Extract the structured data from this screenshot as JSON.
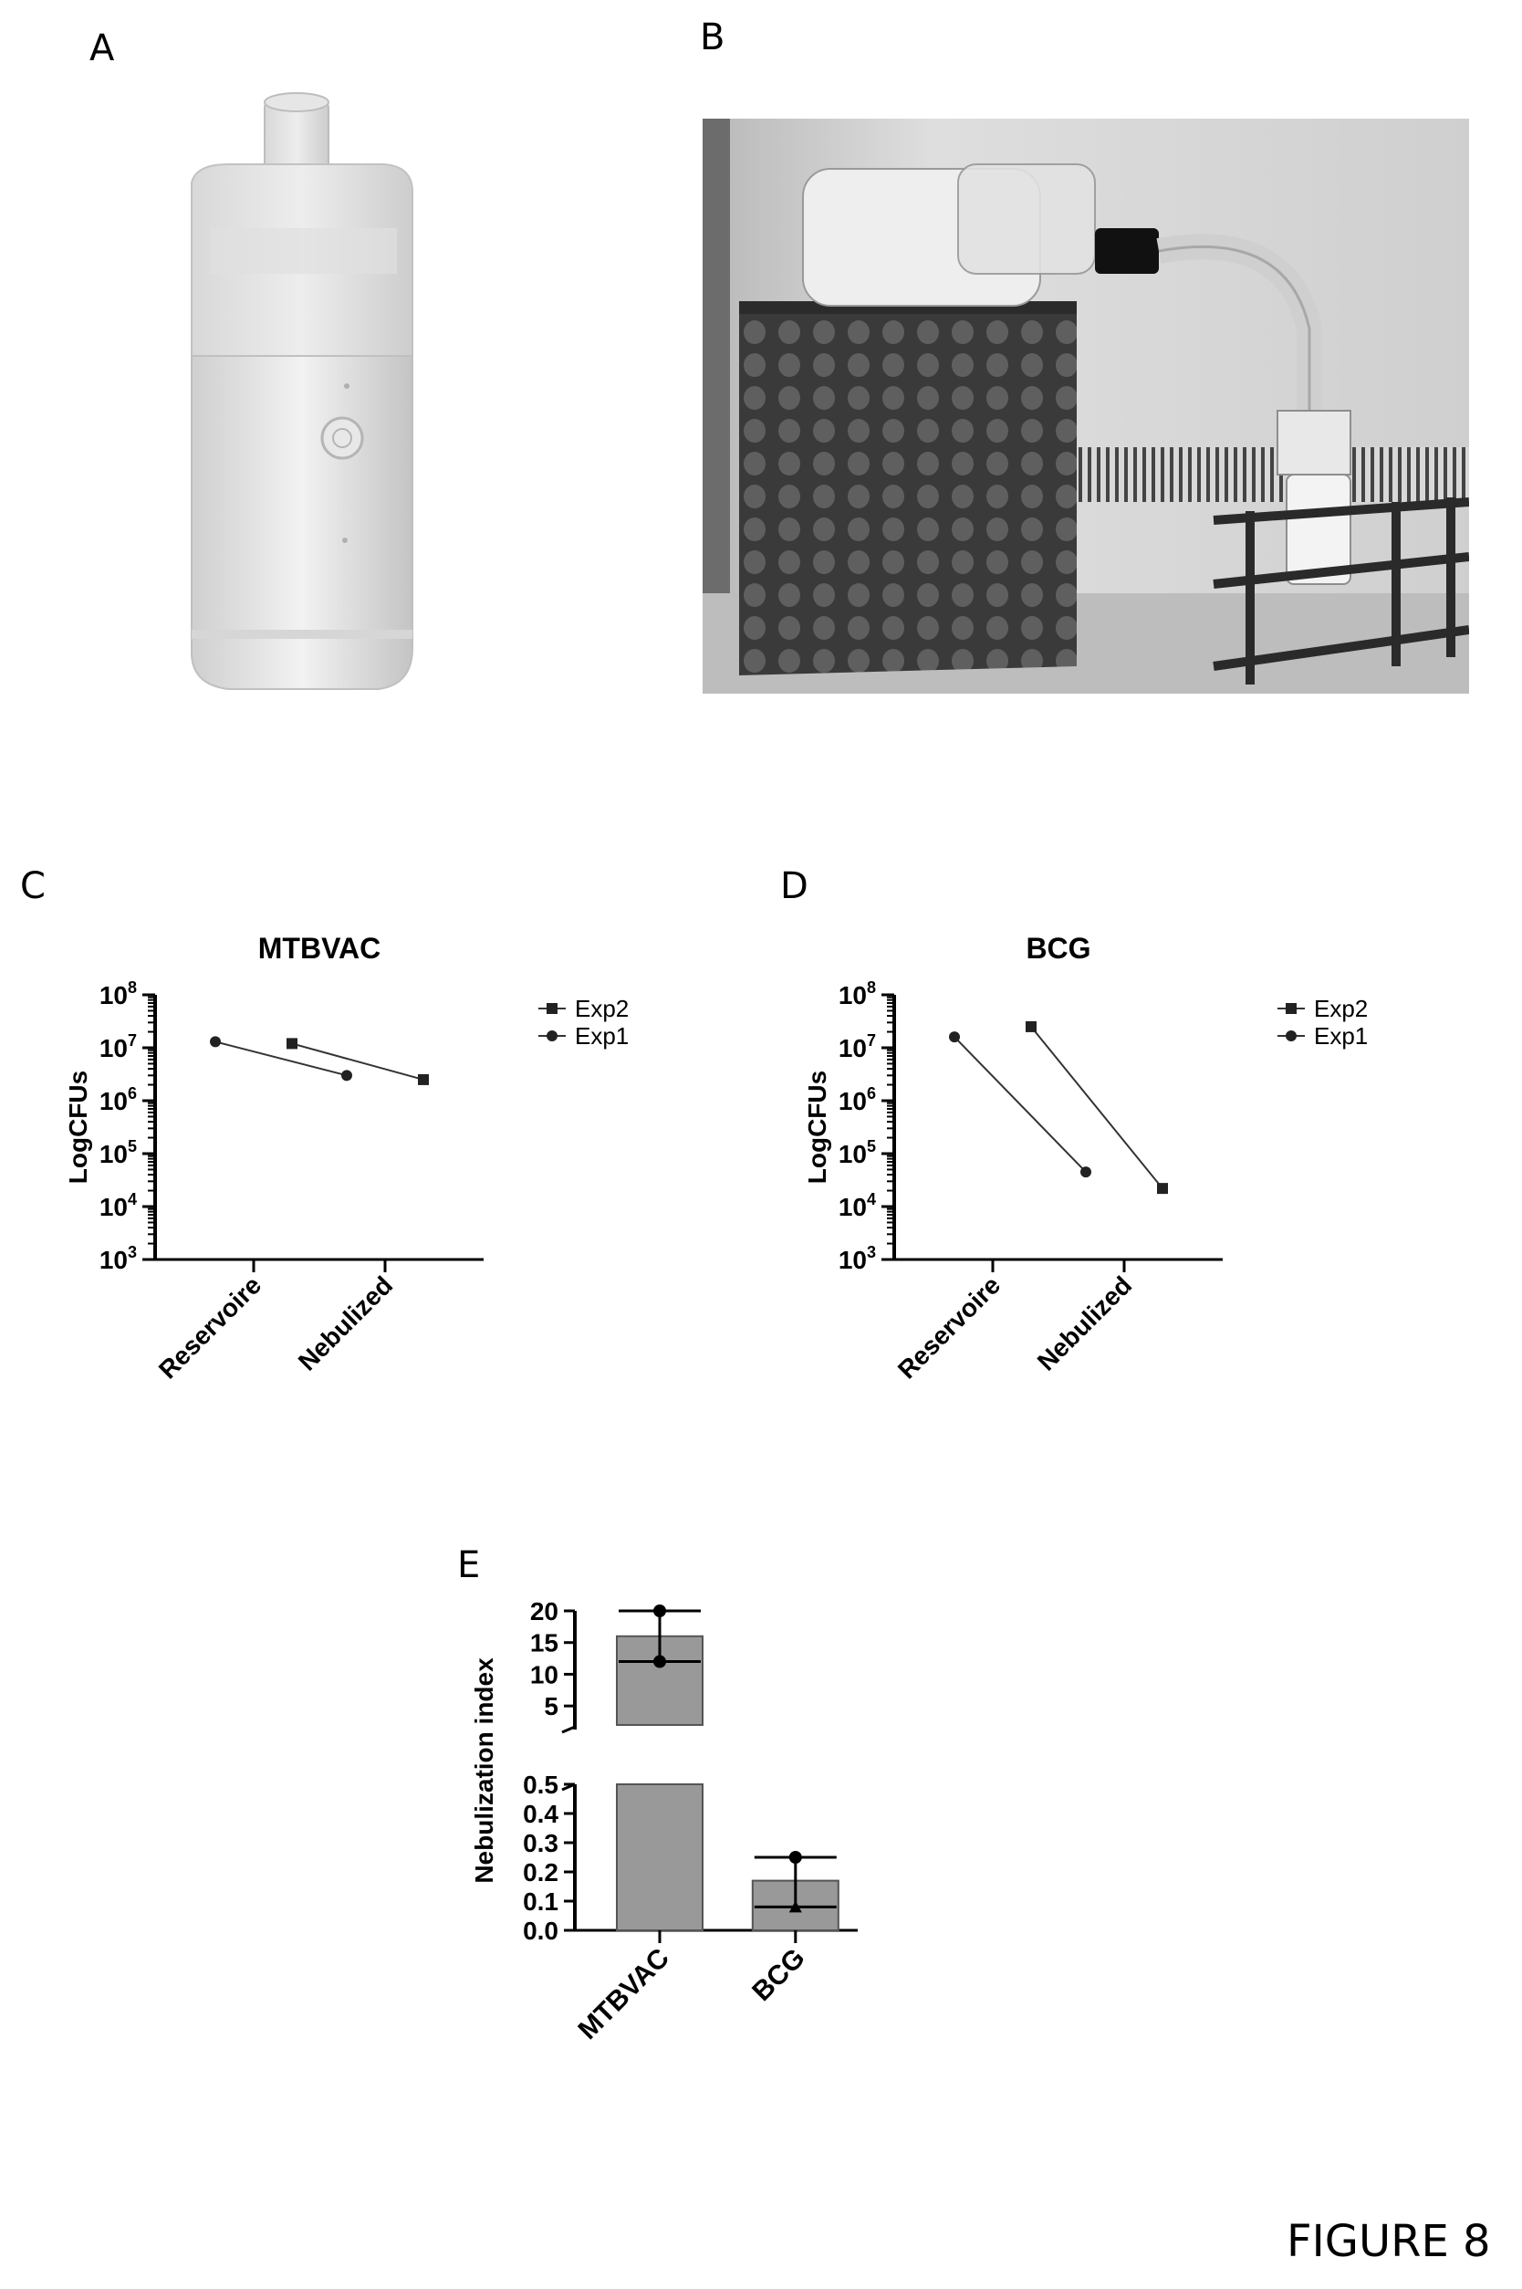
{
  "figure_label": "FIGURE 8",
  "panels": {
    "A": {
      "label": "A"
    },
    "B": {
      "label": "B"
    },
    "C": {
      "label": "C"
    },
    "D": {
      "label": "D"
    },
    "E": {
      "label": "E"
    }
  },
  "chart_data": [
    {
      "id": "C",
      "type": "line",
      "title": "MTBVAC",
      "ylabel": "LogCFUs",
      "xlabel": "",
      "y_scale": "log",
      "ylim": [
        1000,
        100000000
      ],
      "y_ticks": [
        {
          "base": "10",
          "exp": "3"
        },
        {
          "base": "10",
          "exp": "4"
        },
        {
          "base": "10",
          "exp": "5"
        },
        {
          "base": "10",
          "exp": "6"
        },
        {
          "base": "10",
          "exp": "7"
        },
        {
          "base": "10",
          "exp": "8"
        }
      ],
      "categories": [
        "Reservoire",
        "Nebulized"
      ],
      "legend_position": "top-right",
      "series": [
        {
          "name": "Exp2",
          "marker": "square",
          "values": [
            12000000,
            2500000
          ]
        },
        {
          "name": "Exp1",
          "marker": "circle",
          "values": [
            13000000,
            3000000
          ]
        }
      ]
    },
    {
      "id": "D",
      "type": "line",
      "title": "BCG",
      "ylabel": "LogCFUs",
      "xlabel": "",
      "y_scale": "log",
      "ylim": [
        1000,
        100000000
      ],
      "y_ticks": [
        {
          "base": "10",
          "exp": "3"
        },
        {
          "base": "10",
          "exp": "4"
        },
        {
          "base": "10",
          "exp": "5"
        },
        {
          "base": "10",
          "exp": "6"
        },
        {
          "base": "10",
          "exp": "7"
        },
        {
          "base": "10",
          "exp": "8"
        }
      ],
      "categories": [
        "Reservoire",
        "Nebulized"
      ],
      "legend_position": "top-right",
      "series": [
        {
          "name": "Exp2",
          "marker": "square",
          "values": [
            25000000,
            22000
          ]
        },
        {
          "name": "Exp1",
          "marker": "circle",
          "values": [
            16000000,
            45000
          ]
        }
      ]
    },
    {
      "id": "E",
      "type": "bar",
      "title": "",
      "ylabel": "Nebulization index",
      "xlabel": "",
      "categories": [
        "MTBVAC",
        "BCG"
      ],
      "values": [
        16,
        0.17
      ],
      "error_low": [
        12,
        0.08
      ],
      "error_high": [
        20,
        0.25
      ],
      "broken_axis": true,
      "lower_segment": {
        "ylim": [
          0,
          0.5
        ],
        "ticks": [
          "0.0",
          "0.1",
          "0.2",
          "0.3",
          "0.4",
          "0.5"
        ]
      },
      "upper_segment": {
        "ylim": [
          2,
          20
        ],
        "ticks": [
          "5",
          "10",
          "15",
          "20"
        ]
      },
      "bar_color": "#999999"
    }
  ]
}
